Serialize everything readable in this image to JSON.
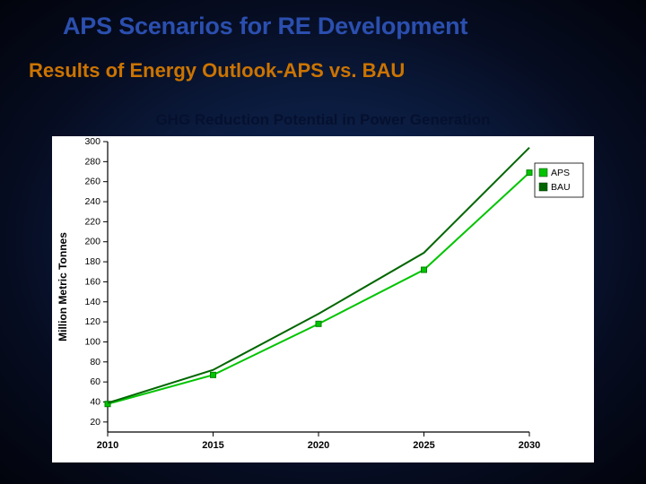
{
  "title": "APS Scenarios for RE Development",
  "subtitle": "Results of Energy Outlook-APS vs. BAU",
  "chart": {
    "type": "line",
    "title": "GHG Reduction Potential in Power Generation",
    "ylabel": "Million Metric Tonnes",
    "x_ticks": [
      2010,
      2015,
      2020,
      2025,
      2030
    ],
    "xlim": [
      2010,
      2030
    ],
    "y_ticks": [
      20,
      40,
      60,
      80,
      100,
      120,
      140,
      160,
      180,
      200,
      220,
      240,
      260,
      280,
      300
    ],
    "ylim": [
      10,
      300
    ],
    "background_color": "#ffffff",
    "axis_color": "#000000",
    "series": [
      {
        "name": "APS",
        "color": "#00c400",
        "marker": "square",
        "marker_size": 6,
        "marker_fill": "#00c400",
        "marker_stroke": "#008000",
        "line_width": 2,
        "x": [
          2010,
          2015,
          2020,
          2025,
          2030
        ],
        "y": [
          38,
          67,
          118,
          172,
          269
        ]
      },
      {
        "name": "BAU",
        "color": "#006600",
        "marker": "none",
        "line_width": 2,
        "x": [
          2010,
          2015,
          2020,
          2025,
          2030
        ],
        "y": [
          39,
          72,
          128,
          189,
          294
        ]
      }
    ],
    "legend": {
      "position": "right",
      "items": [
        "APS",
        "BAU"
      ]
    }
  }
}
